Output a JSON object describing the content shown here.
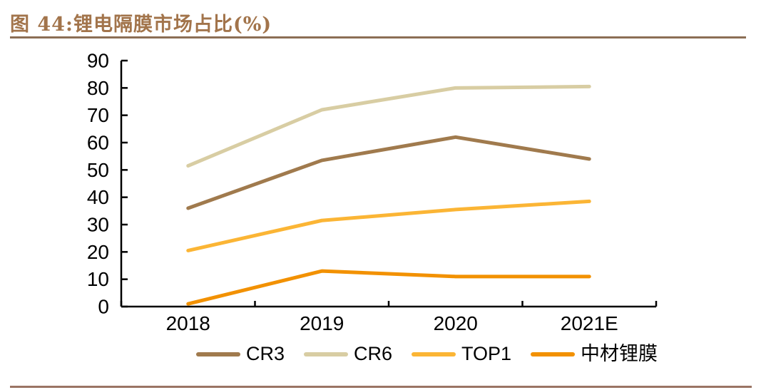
{
  "page": {
    "title": "图 44:锂电隔膜市场占比(%)",
    "accent_color": "#A2744B",
    "title_rule_color": "#8B6E55",
    "bottom_rule_color": "#9A7464"
  },
  "chart_data": {
    "type": "line",
    "title": "图 44:锂电隔膜市场占比(%)",
    "categories": [
      "2018",
      "2019",
      "2020",
      "2021E"
    ],
    "series": [
      {
        "name": "CR3",
        "color": "#A07A4D",
        "values": [
          36,
          53.5,
          62,
          54
        ]
      },
      {
        "name": "CR6",
        "color": "#D8CDA3",
        "values": [
          51.5,
          72,
          80,
          80.5
        ]
      },
      {
        "name": "TOP1",
        "color": "#FBB535",
        "values": [
          20.5,
          31.5,
          35.5,
          38.5
        ]
      },
      {
        "name": "中材锂膜",
        "color": "#F29100",
        "values": [
          1,
          13,
          11,
          11
        ]
      }
    ],
    "xlabel": "",
    "ylabel": "",
    "ylim": [
      0,
      90
    ],
    "ytick_step": 10,
    "axis_color": "#000000",
    "grid": false,
    "legend_position": "bottom"
  }
}
